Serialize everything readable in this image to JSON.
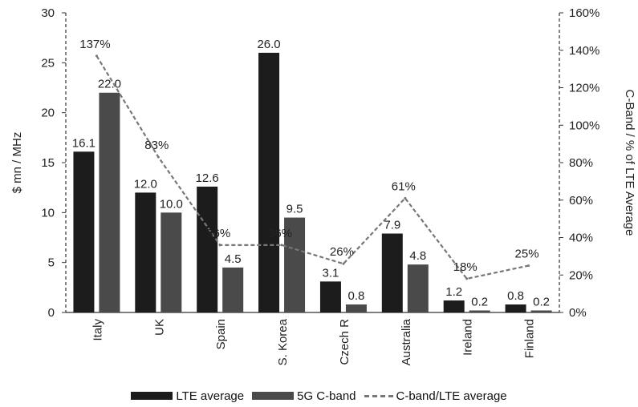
{
  "chart_data": {
    "type": "bar",
    "categories": [
      "Italy",
      "UK",
      "Spain",
      "S. Korea",
      "Czech R",
      "Australia",
      "Ireland",
      "Finland"
    ],
    "series": [
      {
        "name": "LTE average",
        "kind": "bar",
        "axis": "left",
        "color": "#1c1c1c",
        "values": [
          16.1,
          12.0,
          12.6,
          26.0,
          3.1,
          7.9,
          1.2,
          0.8
        ],
        "labels": [
          "16.1",
          "12.0",
          "12.6",
          "26.0",
          "3.1",
          "7.9",
          "1.2",
          "0.8"
        ]
      },
      {
        "name": "5G C-band",
        "kind": "bar",
        "axis": "left",
        "color": "#4a4a4a",
        "values": [
          22.0,
          10.0,
          4.5,
          9.5,
          0.8,
          4.8,
          0.2,
          0.2
        ],
        "labels": [
          "22.0",
          "10.0",
          "4.5",
          "9.5",
          "0.8",
          "4.8",
          "0.2",
          "0.2"
        ]
      },
      {
        "name": "C-band/LTE average",
        "kind": "line",
        "axis": "right",
        "color": "#777777",
        "values": [
          137,
          83,
          36,
          36,
          26,
          61,
          18,
          25
        ],
        "labels": [
          "137%",
          "83%",
          "36%",
          "36%",
          "26%",
          "61%",
          "18%",
          "25%"
        ]
      }
    ],
    "ylabel": "$ mn / MHz",
    "y2label": "C-Band / % of LTE Average",
    "ylim": [
      0,
      30
    ],
    "yticks": [
      "0",
      "5",
      "10",
      "15",
      "20",
      "25",
      "30"
    ],
    "y2lim": [
      0,
      160
    ],
    "y2ticks": [
      "0%",
      "20%",
      "40%",
      "60%",
      "80%",
      "100%",
      "120%",
      "140%",
      "160%"
    ],
    "grid": false,
    "legend_position": "bottom"
  }
}
